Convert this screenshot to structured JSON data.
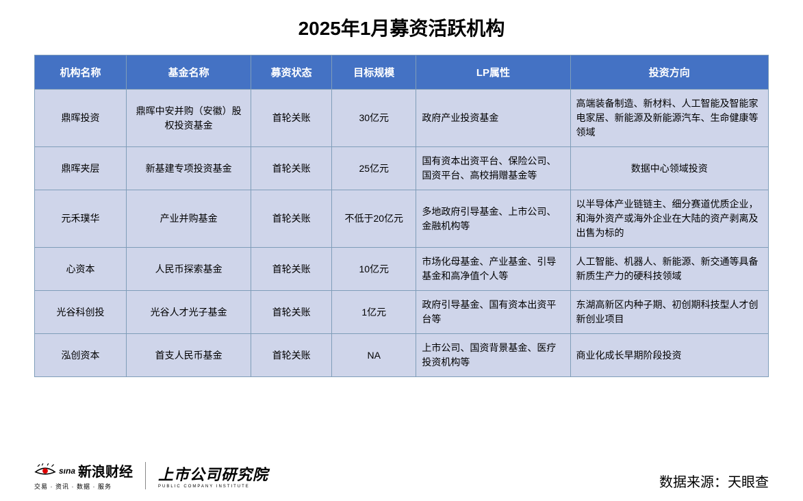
{
  "title": "2025年1月募资活跃机构",
  "table": {
    "header_bg": "#4472c4",
    "row_bg": "#cfd5ea",
    "border_color": "#7f9db9",
    "columns": [
      {
        "label": "机构名称",
        "align": "center"
      },
      {
        "label": "基金名称",
        "align": "center"
      },
      {
        "label": "募资状态",
        "align": "center"
      },
      {
        "label": "目标规模",
        "align": "center"
      },
      {
        "label": "LP属性",
        "align": "left"
      },
      {
        "label": "投资方向",
        "align": "left"
      }
    ],
    "rows": [
      {
        "org": "鼎晖投资",
        "fund": "鼎晖中安并购（安徽）股权投资基金",
        "status": "首轮关账",
        "scale": "30亿元",
        "lp": "政府产业投资基金",
        "direction": "高端装备制造、新材料、人工智能及智能家电家居、新能源及新能源汽车、生命健康等领域"
      },
      {
        "org": "鼎晖夹层",
        "fund": "新基建专项投资基金",
        "status": "首轮关账",
        "scale": "25亿元",
        "lp": "国有资本出资平台、保险公司、国资平台、高校捐赠基金等",
        "direction": "数据中心领域投资"
      },
      {
        "org": "元禾璞华",
        "fund": "产业并购基金",
        "status": "首轮关账",
        "scale": "不低于20亿元",
        "lp": "多地政府引导基金、上市公司、金融机构等",
        "direction": "以半导体产业链链主、细分赛道优质企业，和海外资产或海外企业在大陆的资产剥离及出售为标的"
      },
      {
        "org": "心资本",
        "fund": "人民币探索基金",
        "status": "首轮关账",
        "scale": "10亿元",
        "lp": "市场化母基金、产业基金、引导基金和高净值个人等",
        "direction": "人工智能、机器人、新能源、新交通等具备新质生产力的硬科技领域"
      },
      {
        "org": "光谷科创投",
        "fund": "光谷人才光子基金",
        "status": "首轮关账",
        "scale": "1亿元",
        "lp": "政府引导基金、国有资本出资平台等",
        "direction": "东湖高新区内种子期、初创期科技型人才创新创业项目"
      },
      {
        "org": "泓创资本",
        "fund": "首支人民币基金",
        "status": "首轮关账",
        "scale": "NA",
        "lp": "上市公司、国资背景基金、医疗投资机构等",
        "direction": "商业化成长早期阶段投资"
      }
    ]
  },
  "footer": {
    "sina_brand": "sına",
    "sina_cn": "新浪财经",
    "sina_sub": "交易 · 资讯 · 数据 · 服务",
    "research_main": "上市公司研究院",
    "research_sub": "PUBLIC COMPANY INSTITUTE",
    "source_label": "数据来源：",
    "source_value": "天眼查"
  }
}
